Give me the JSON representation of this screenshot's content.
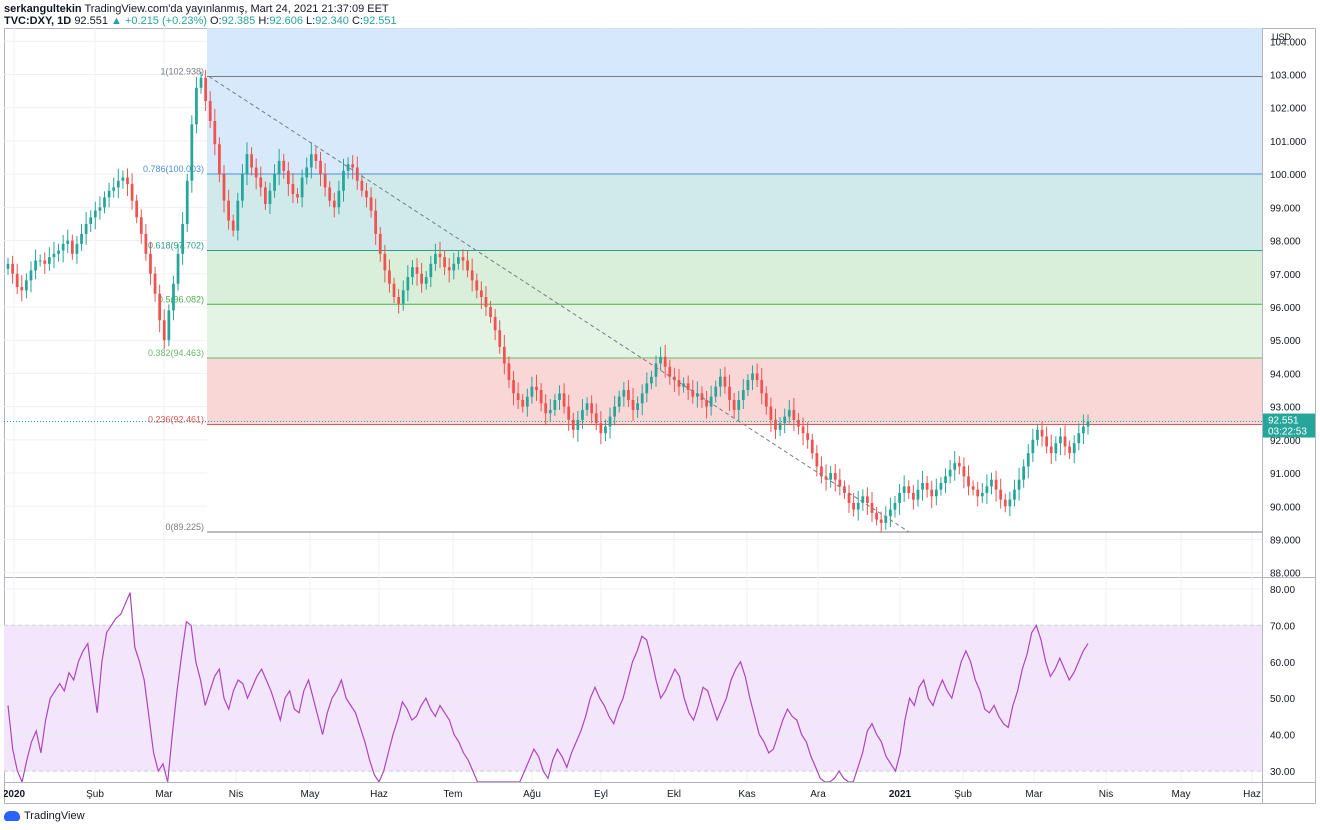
{
  "header": {
    "author": "serkangultekin",
    "published": "TradingView.com'da yayınlanmış, Mart 24, 2021 21:37:09 EET",
    "symbol": "TVC:DXY, 1D",
    "last": "92.551",
    "change": "▲ +0.215 (+0.23%)",
    "open_label": "O:",
    "open": "92.385",
    "high_label": "H:",
    "high": "92.606",
    "low_label": "L:",
    "low": "92.340",
    "close_label": "C:",
    "close": "92.551"
  },
  "footer": {
    "brand": "TradingView"
  },
  "colors": {
    "up": "#26a69a",
    "down": "#ef5350",
    "rsi": "#ab47bc",
    "rsi_band": "#f3e5fc",
    "grid": "#eef0f3",
    "axis_text": "#131722"
  },
  "chart_data": [
    {
      "type": "candlestick",
      "title": "",
      "currency": "USD",
      "x_ticks": [
        "2020",
        "Şub",
        "Mar",
        "Nis",
        "May",
        "Haz",
        "Tem",
        "Ağu",
        "Eyl",
        "Ekl",
        "Kas",
        "Ara",
        "2021",
        "Şub",
        "Mar",
        "Nis",
        "May",
        "Haz"
      ],
      "y_ticks": [
        "104.000",
        "103.000",
        "102.000",
        "101.000",
        "100.000",
        "99.000",
        "98.000",
        "97.000",
        "96.000",
        "95.000",
        "94.000",
        "93.000",
        "92.000",
        "91.000",
        "90.000",
        "89.000",
        "88.000"
      ],
      "ylim": [
        87.9,
        104.4
      ],
      "last_price": "92.551",
      "countdown": "03:22:53",
      "fib_retracement": {
        "high": 102.938,
        "low": 89.225,
        "levels": [
          {
            "label": "1(102.938)",
            "value": 102.938,
            "color": "#787b86",
            "fill": "#e6e6e8"
          },
          {
            "label": "0.786(100.003)",
            "value": 100.003,
            "color": "#4a90d9",
            "fill": "#d6e8fb"
          },
          {
            "label": "0.618(97.702)",
            "value": 97.702,
            "color": "#2a9d8f",
            "fill": "#cde9ea"
          },
          {
            "label": "0.5(96.082)",
            "value": 96.082,
            "color": "#4caf50",
            "fill": "#d7eed8"
          },
          {
            "label": "0.382(94.463)",
            "value": 94.463,
            "color": "#66bb6a",
            "fill": "#e2f3e3"
          },
          {
            "label": "0.236(92.461)",
            "value": 92.461,
            "color": "#ef5350",
            "fill": "#f9d5d5"
          },
          {
            "label": "0(89.225)",
            "value": 89.225,
            "color": "#787b86",
            "fill": "#ffffff"
          }
        ],
        "above_fill": "#d2e5fb"
      },
      "close_series": [
        97.3,
        97.0,
        96.6,
        96.5,
        96.8,
        97.1,
        97.4,
        97.4,
        97.3,
        97.5,
        97.6,
        97.7,
        97.9,
        98.0,
        97.6,
        97.9,
        98.2,
        98.5,
        98.7,
        98.9,
        99.0,
        99.3,
        99.5,
        99.6,
        99.8,
        99.9,
        99.7,
        99.2,
        98.7,
        98.2,
        97.6,
        97.0,
        96.4,
        95.6,
        95.0,
        95.9,
        96.7,
        97.6,
        98.5,
        99.8,
        101.5,
        102.6,
        102.9,
        102.2,
        101.6,
        100.9,
        100.0,
        99.2,
        98.6,
        98.3,
        99.2,
        100.0,
        100.6,
        100.2,
        99.9,
        99.6,
        99.1,
        99.5,
        100.0,
        100.4,
        100.1,
        99.7,
        99.4,
        99.3,
        99.9,
        100.2,
        100.6,
        100.4,
        100.0,
        99.6,
        99.2,
        99.0,
        99.5,
        100.1,
        100.3,
        100.2,
        99.8,
        99.5,
        99.3,
        98.9,
        98.2,
        97.6,
        97.1,
        96.7,
        96.3,
        96.1,
        96.5,
        96.9,
        97.2,
        97.0,
        96.7,
        96.9,
        97.3,
        97.6,
        97.5,
        97.2,
        97.1,
        97.3,
        97.5,
        97.4,
        97.1,
        96.8,
        96.5,
        96.3,
        96.0,
        95.7,
        95.3,
        94.8,
        94.3,
        93.8,
        93.4,
        93.2,
        93.0,
        93.3,
        93.6,
        93.5,
        93.1,
        92.8,
        92.9,
        93.2,
        93.4,
        93.0,
        92.6,
        92.3,
        92.6,
        92.9,
        93.1,
        92.8,
        92.5,
        92.2,
        92.4,
        92.7,
        93.0,
        93.3,
        93.5,
        93.2,
        92.9,
        93.1,
        93.4,
        93.7,
        93.9,
        94.3,
        94.5,
        94.2,
        93.9,
        93.8,
        93.6,
        93.7,
        93.5,
        93.3,
        93.4,
        93.2,
        93.0,
        93.3,
        93.6,
        93.9,
        93.6,
        93.2,
        92.9,
        93.2,
        93.5,
        93.8,
        94.0,
        93.8,
        93.4,
        93.0,
        92.6,
        92.3,
        92.5,
        92.7,
        92.9,
        92.6,
        92.4,
        92.2,
        92.0,
        91.6,
        91.2,
        90.9,
        90.8,
        91.0,
        90.8,
        90.6,
        90.4,
        90.1,
        89.9,
        90.1,
        90.3,
        90.1,
        89.8,
        89.6,
        89.5,
        89.7,
        89.9,
        90.1,
        90.4,
        90.6,
        90.4,
        90.2,
        90.5,
        90.7,
        90.5,
        90.3,
        90.5,
        90.7,
        90.9,
        91.1,
        91.3,
        91.2,
        90.9,
        90.6,
        90.5,
        90.3,
        90.4,
        90.6,
        90.8,
        90.5,
        90.2,
        90.0,
        90.2,
        90.5,
        90.8,
        91.2,
        91.6,
        92.0,
        92.3,
        92.1,
        91.8,
        91.6,
        91.9,
        92.1,
        91.8,
        91.6,
        91.9,
        92.2,
        92.4,
        92.551
      ]
    },
    {
      "type": "line",
      "title": "",
      "y_ticks": [
        "80.00",
        "70.00",
        "60.00",
        "50.00",
        "40.00",
        "30.00"
      ],
      "ylim": [
        27,
        83
      ],
      "bands": [
        30,
        70
      ],
      "rsi_series": [
        48,
        36,
        30,
        27,
        33,
        38,
        41,
        35,
        44,
        50,
        52,
        54,
        52,
        57,
        55,
        60,
        63,
        65,
        55,
        46,
        60,
        68,
        70,
        72,
        73,
        76,
        79,
        64,
        60,
        55,
        45,
        35,
        30,
        32,
        27,
        40,
        52,
        62,
        71,
        70,
        60,
        55,
        48,
        52,
        56,
        58,
        50,
        47,
        52,
        55,
        54,
        50,
        53,
        56,
        58,
        55,
        52,
        48,
        44,
        50,
        52,
        47,
        46,
        52,
        55,
        50,
        45,
        40,
        46,
        50,
        52,
        55,
        50,
        48,
        46,
        42,
        38,
        33,
        29,
        27,
        30,
        35,
        40,
        44,
        49,
        47,
        44,
        45,
        48,
        50,
        47,
        45,
        48,
        46,
        44,
        40,
        38,
        35,
        33,
        30,
        27,
        25,
        22,
        20,
        18,
        17,
        18,
        20,
        22,
        26,
        30,
        33,
        36,
        34,
        30,
        28,
        33,
        36,
        34,
        31,
        35,
        38,
        41,
        45,
        50,
        53,
        50,
        48,
        45,
        43,
        47,
        50,
        55,
        60,
        63,
        67,
        66,
        61,
        55,
        50,
        52,
        55,
        58,
        56,
        50,
        46,
        44,
        48,
        53,
        52,
        48,
        44,
        47,
        50,
        55,
        58,
        60,
        56,
        50,
        45,
        40,
        38,
        35,
        36,
        40,
        44,
        47,
        45,
        44,
        40,
        38,
        34,
        31,
        28,
        26,
        25,
        28,
        30,
        28,
        26,
        27,
        31,
        35,
        41,
        43,
        40,
        38,
        34,
        32,
        30,
        35,
        44,
        50,
        48,
        53,
        55,
        50,
        48,
        52,
        55,
        52,
        50,
        55,
        60,
        63,
        60,
        55,
        52,
        47,
        46,
        48,
        45,
        43,
        42,
        48,
        52,
        58,
        62,
        68,
        70,
        66,
        60,
        56,
        58,
        61,
        58,
        55,
        57,
        60,
        63,
        65
      ]
    }
  ]
}
